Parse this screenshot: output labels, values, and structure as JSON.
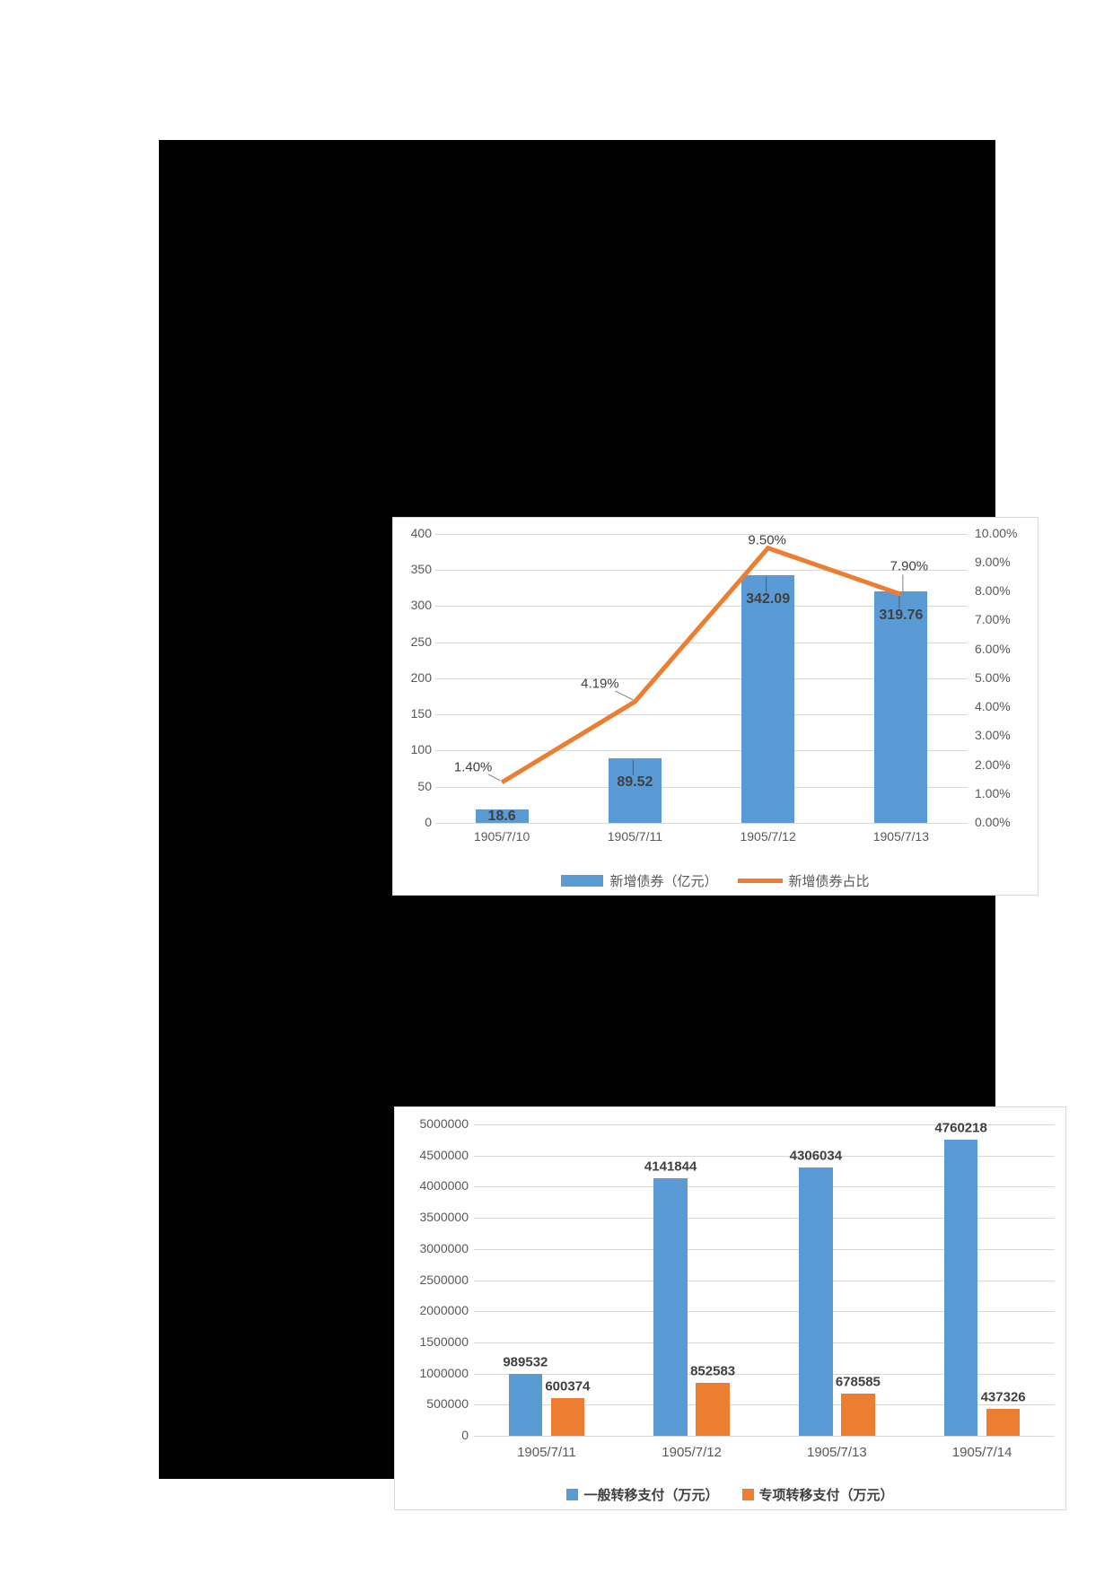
{
  "page": {
    "description": "Black document canvas containing two charts",
    "colors": {
      "canvas_background": "#000000",
      "panel_background": "#FFFFFF",
      "bar_blue": "#5B9BD5",
      "line_orange": "#ED7D31",
      "gridline": "#D9D9D9",
      "tick_text": "#595959",
      "data_label_text": "#404040"
    }
  },
  "chart_data": [
    {
      "type": "combo-bar-line",
      "title": "",
      "categories": [
        "1905/7/10",
        "1905/7/11",
        "1905/7/12",
        "1905/7/13"
      ],
      "series": [
        {
          "name": "新增债券（亿元）",
          "type": "bar",
          "axis": "left",
          "color": "#5B9BD5",
          "values": [
            18.6,
            89.52,
            342.09,
            319.76
          ],
          "labels": [
            "18.6",
            "89.52",
            "342.09",
            "319.76"
          ]
        },
        {
          "name": "新增债券占比",
          "type": "line",
          "axis": "right",
          "color": "#ED7D31",
          "values": [
            1.4,
            4.19,
            9.5,
            7.9
          ],
          "labels": [
            "1.40%",
            "4.19%",
            "9.50%",
            "7.90%"
          ]
        }
      ],
      "left_axis": {
        "min": 0,
        "max": 400,
        "step": 50,
        "tick_labels_top_to_bottom": [
          "400",
          "350",
          "300",
          "250",
          "200",
          "150",
          "100",
          "50",
          "0"
        ]
      },
      "right_axis": {
        "min": 0,
        "max": 10,
        "step": 1,
        "tick_labels_top_to_bottom": [
          "10.00%",
          "9.00%",
          "8.00%",
          "7.00%",
          "6.00%",
          "5.00%",
          "4.00%",
          "3.00%",
          "2.00%",
          "1.00%",
          "0.00%"
        ]
      },
      "grid": true,
      "legend_position": "bottom"
    },
    {
      "type": "bar",
      "title": "",
      "categories": [
        "1905/7/11",
        "1905/7/12",
        "1905/7/13",
        "1905/7/14"
      ],
      "series": [
        {
          "name": "一般转移支付（万元）",
          "color": "#5B9BD5",
          "values": [
            989532,
            4141844,
            4306034,
            4760218
          ],
          "labels": [
            "989532",
            "4141844",
            "4306034",
            "4760218"
          ]
        },
        {
          "name": "专项转移支付（万元）",
          "color": "#ED7D31",
          "values": [
            600374,
            852583,
            678585,
            437326
          ],
          "labels": [
            "600374",
            "852583",
            "678585",
            "437326"
          ]
        }
      ],
      "y_axis": {
        "min": 0,
        "max": 5000000,
        "step": 500000,
        "tick_labels_top_to_bottom": [
          "5000000",
          "4500000",
          "4000000",
          "3500000",
          "3000000",
          "2500000",
          "2000000",
          "1500000",
          "1000000",
          "500000",
          "0"
        ]
      },
      "grid": true,
      "legend_position": "bottom"
    }
  ]
}
